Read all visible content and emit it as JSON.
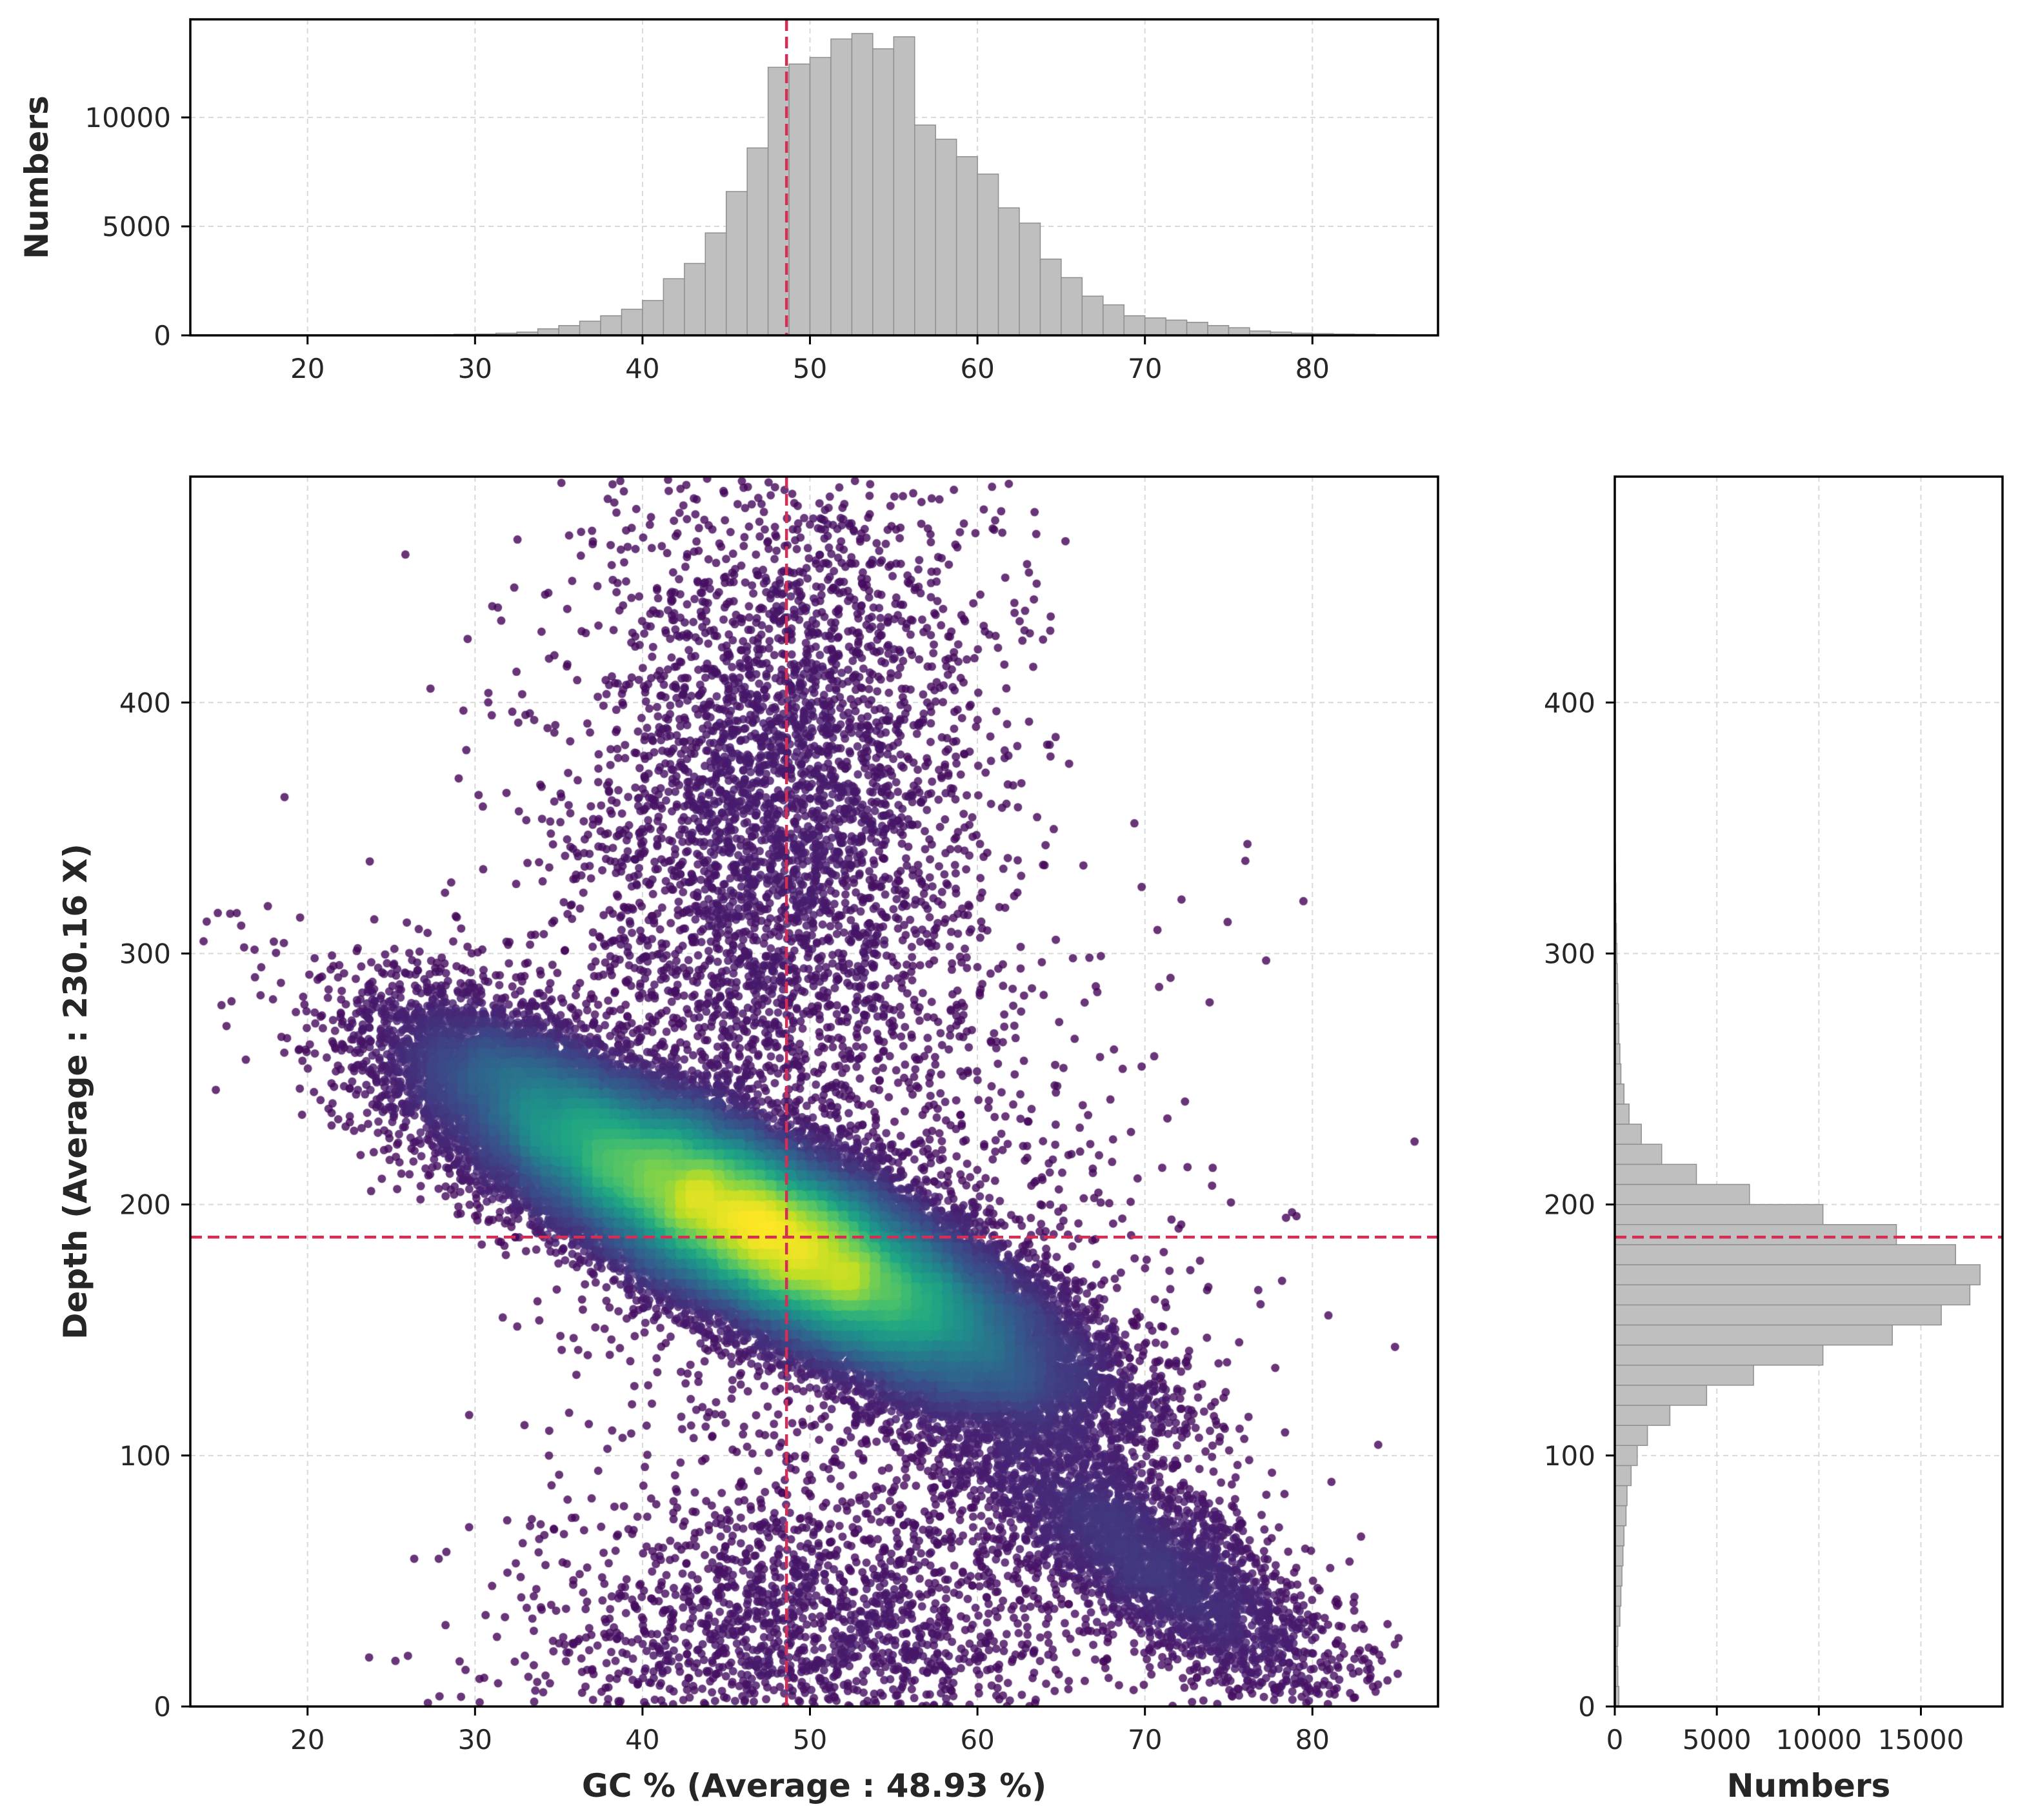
{
  "chart_data": [
    {
      "type": "scatter",
      "xlabel": "GC % (Average : 48.93 %)",
      "ylabel": "Depth (Average : 230.16 X)",
      "xlim": [
        13,
        87.5
      ],
      "ylim": [
        0,
        490
      ],
      "xticks": [
        20,
        30,
        40,
        50,
        60,
        70,
        80
      ],
      "yticks": [
        0,
        100,
        200,
        300,
        400
      ],
      "grid": true,
      "colormap": "viridis",
      "colorscale_note": "point density",
      "ref_x": 48.6,
      "ref_y": 187,
      "colors": {
        "ref": "#d62d54",
        "low": "#440154",
        "high": "#fde725"
      },
      "density_components": [
        {
          "name": "main-diagonal-band",
          "cx": 47,
          "cy": 190,
          "sx": 8.5,
          "sy": 32,
          "rho": -0.82,
          "weight": 0.8
        },
        {
          "name": "upper-plume",
          "cx": 48,
          "cy": 360,
          "sx": 6,
          "sy": 70,
          "rho": 0.1,
          "weight": 0.06
        },
        {
          "name": "left-arm",
          "cx": 33,
          "cy": 245,
          "sx": 3.5,
          "sy": 20,
          "rho": -0.6,
          "weight": 0.03
        },
        {
          "name": "lower-tail",
          "cx": 70,
          "cy": 60,
          "sx": 6,
          "sy": 30,
          "rho": -0.8,
          "weight": 0.05
        },
        {
          "name": "bottom-scatter",
          "cx": 50,
          "cy": 30,
          "sx": 8,
          "sy": 30,
          "rho": 0,
          "weight": 0.03
        },
        {
          "name": "diffuse-background",
          "cx": 52,
          "cy": 200,
          "sx": 10,
          "sy": 90,
          "rho": -0.3,
          "weight": 0.03
        }
      ]
    },
    {
      "type": "bar",
      "orientation": "vertical",
      "name": "gc-histogram",
      "ylabel": "Numbers",
      "xlim": [
        13,
        87.5
      ],
      "ylim": [
        0,
        14500
      ],
      "xticks": [
        20,
        30,
        40,
        50,
        60,
        70,
        80
      ],
      "yticks": [
        0,
        5000,
        10000
      ],
      "grid": true,
      "bin_start": 15,
      "bin_width": 1.25,
      "values": [
        0,
        0,
        0,
        0,
        0,
        0,
        0,
        0,
        10,
        20,
        30,
        50,
        60,
        100,
        150,
        300,
        450,
        650,
        900,
        1200,
        1600,
        2600,
        3300,
        4700,
        6600,
        8600,
        12300,
        12450,
        12750,
        13600,
        13850,
        13150,
        13700,
        9650,
        9000,
        8200,
        7400,
        5850,
        5150,
        3500,
        2650,
        1800,
        1400,
        900,
        800,
        700,
        600,
        450,
        350,
        200,
        150,
        100,
        80,
        60,
        50,
        30,
        20,
        10,
        0
      ],
      "ref_x": 48.6
    },
    {
      "type": "bar",
      "orientation": "horizontal",
      "name": "depth-histogram",
      "xlabel": "Numbers",
      "xlim": [
        0,
        19000
      ],
      "ylim": [
        0,
        490
      ],
      "xticks": [
        0,
        5000,
        10000,
        15000
      ],
      "yticks": [
        0,
        100,
        200,
        300,
        400
      ],
      "grid": true,
      "bin_start": 0,
      "bin_width": 8,
      "values": [
        200,
        150,
        120,
        150,
        250,
        300,
        350,
        400,
        450,
        550,
        600,
        800,
        1100,
        1600,
        2700,
        4500,
        6800,
        10200,
        13600,
        16000,
        17400,
        17900,
        16700,
        13800,
        10200,
        6600,
        4000,
        2300,
        1300,
        700,
        450,
        300,
        250,
        200,
        180,
        150,
        120,
        100,
        80,
        60,
        50,
        40,
        30,
        25,
        20,
        15,
        10,
        8,
        6,
        5,
        4,
        3,
        3,
        2,
        2,
        1,
        1,
        1,
        1,
        1,
        0
      ],
      "ref_y": 187
    }
  ]
}
